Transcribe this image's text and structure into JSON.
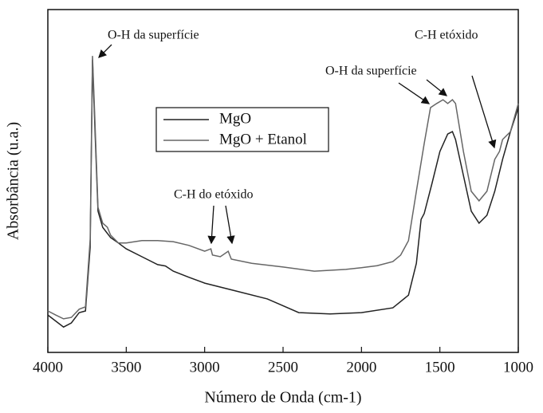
{
  "chart_data": {
    "type": "line",
    "x_label": "Número de Onda (cm-1)",
    "y_label": "Absorbância (u.a.)",
    "xlim": [
      4000,
      1000
    ],
    "xticks": [
      4000,
      3500,
      3000,
      2500,
      2000,
      1500,
      1000
    ],
    "ylim": [
      0,
      100
    ],
    "annotations": [
      "O-H  da superfície",
      "C-H  etóxido",
      "O-H  da superfície",
      "C-H do etóxido"
    ],
    "legend": "upper center",
    "series": [
      {
        "name": "MgO",
        "color": "#222222",
        "x": [
          4000,
          3900,
          3850,
          3800,
          3760,
          3730,
          3715,
          3700,
          3680,
          3650,
          3600,
          3550,
          3500,
          3400,
          3300,
          3250,
          3200,
          3100,
          3000,
          2800,
          2600,
          2400,
          2200,
          2000,
          1800,
          1700,
          1650,
          1620,
          1600,
          1550,
          1500,
          1450,
          1420,
          1400,
          1350,
          1300,
          1250,
          1200,
          1150,
          1100,
          1050,
          1000
        ],
        "values": [
          10.9,
          7.4,
          8.6,
          11.6,
          12.1,
          30.7,
          85.3,
          65.6,
          41.2,
          36.5,
          33.5,
          31.9,
          30.2,
          27.9,
          25.6,
          25.2,
          23.7,
          21.9,
          20.2,
          17.9,
          15.6,
          11.6,
          11.2,
          11.6,
          13.0,
          16.7,
          26.0,
          38.8,
          40.5,
          49.3,
          58.6,
          63.7,
          64.4,
          62.1,
          51.6,
          41.2,
          37.7,
          40.0,
          47.0,
          56.3,
          64.4,
          71.4
        ]
      },
      {
        "name": "MgO + Etanol",
        "color": "#666666",
        "x": [
          4000,
          3950,
          3900,
          3850,
          3800,
          3760,
          3730,
          3715,
          3700,
          3680,
          3650,
          3620,
          3600,
          3550,
          3500,
          3400,
          3300,
          3200,
          3100,
          3000,
          2960,
          2950,
          2900,
          2850,
          2830,
          2700,
          2500,
          2300,
          2100,
          2000,
          1900,
          1800,
          1750,
          1700,
          1650,
          1600,
          1560,
          1520,
          1480,
          1450,
          1420,
          1400,
          1350,
          1300,
          1250,
          1200,
          1150,
          1120,
          1100,
          1050,
          1000
        ],
        "values": [
          12.1,
          10.9,
          9.8,
          10.2,
          12.6,
          13.3,
          33.0,
          86.5,
          67.9,
          42.3,
          37.7,
          36.5,
          34.2,
          31.9,
          31.9,
          32.6,
          32.6,
          32.3,
          31.2,
          29.5,
          30.2,
          28.4,
          27.9,
          29.5,
          27.2,
          26.0,
          24.9,
          23.7,
          24.2,
          24.7,
          25.3,
          26.5,
          28.4,
          32.6,
          47.0,
          60.9,
          71.4,
          72.6,
          73.7,
          72.6,
          73.7,
          72.6,
          58.6,
          47.0,
          44.2,
          47.0,
          56.3,
          58.6,
          62.1,
          64.4,
          72.6
        ]
      }
    ]
  }
}
